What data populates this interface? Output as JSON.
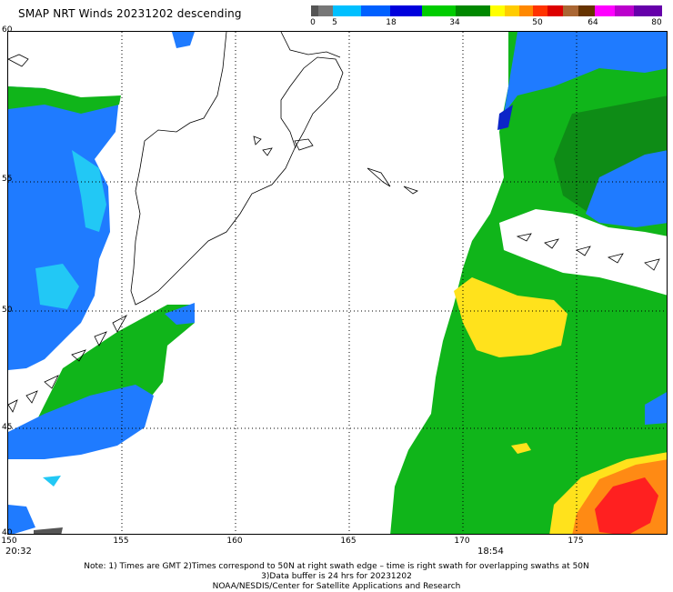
{
  "title": "SMAP NRT Winds  20231202 descending",
  "colorbar": {
    "labels": [
      "0",
      "5",
      "18",
      "34",
      "50",
      "64",
      "80"
    ],
    "colors": [
      "#555555",
      "#666666",
      "#00bfff",
      "#0066ff",
      "#0000ee",
      "#00cc00",
      "#009900",
      "#ffff00",
      "#ffcc00",
      "#ff9900",
      "#ff3300",
      "#ee0000",
      "#aa6633",
      "#663300",
      "#ff00ff",
      "#aa00cc",
      "#6600aa"
    ]
  },
  "map": {
    "lat_labels": [
      "60",
      "55",
      "50",
      "45",
      "40"
    ],
    "lon_labels": [
      "150",
      "155",
      "160",
      "165",
      "170",
      "175"
    ],
    "time_left": "20:32",
    "time_right": "18:54",
    "wind_colors": {
      "blue": "#1f7bff",
      "cyan": "#22c8f5",
      "green": "#10b51a",
      "dark_green": "#0e8c16",
      "yellow": "#ffe21c",
      "orange": "#ff8a14",
      "red": "#ff2020",
      "navy": "#0c25c8",
      "gray": "#555555"
    }
  },
  "notes": {
    "line1": "Note: 1) Times are GMT 2)Times correspond to 50N at right swath edge – time is right swath for overlapping swaths at 50N",
    "line2": "3)Data buffer is 24 hrs for 20231202",
    "line3": "NOAA/NESDIS/Center for Satellite Applications and Research"
  }
}
